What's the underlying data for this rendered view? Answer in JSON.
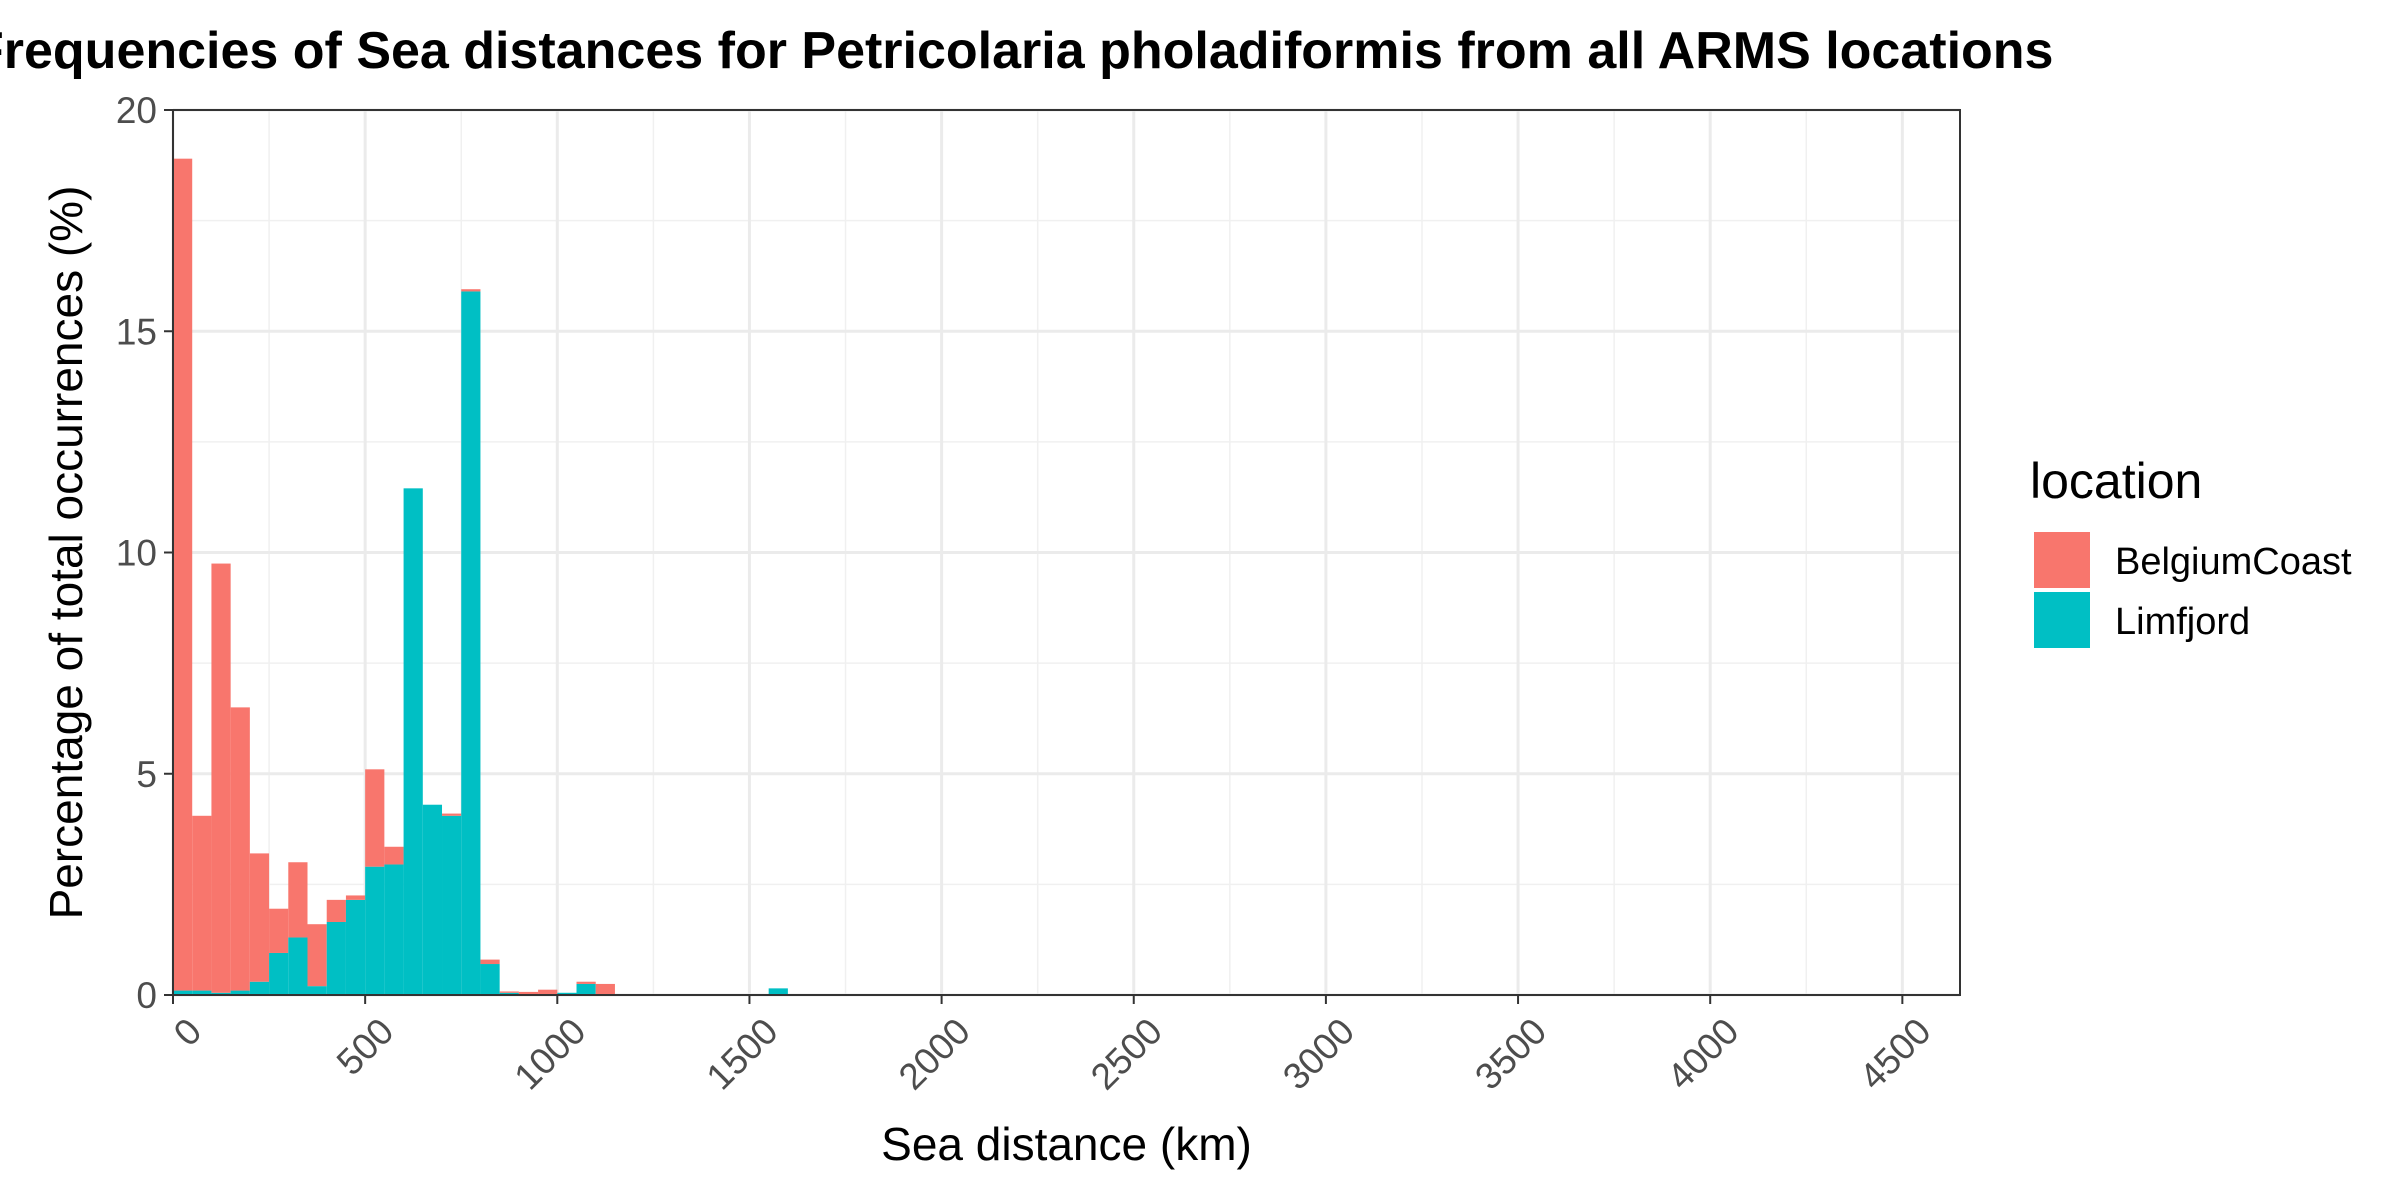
{
  "chart_data": {
    "type": "bar",
    "stacked": true,
    "title": "Frequencies of Sea distances for Petricolaria pholadiformis from all ARMS locations",
    "xlabel": "Sea distance (km)",
    "ylabel": "Percentage of total occurrences (%)",
    "xlim": [
      0,
      4650
    ],
    "ylim": [
      0,
      20
    ],
    "bin_width": 50,
    "x_ticks": [
      0,
      500,
      1000,
      1500,
      2000,
      2500,
      3000,
      3500,
      4000,
      4500
    ],
    "x_tick_labels": [
      "0",
      "500",
      "1000",
      "1500",
      "2000",
      "2500",
      "3000",
      "3500",
      "4000",
      "4500"
    ],
    "y_ticks": [
      0,
      5,
      10,
      15,
      20
    ],
    "y_tick_labels": [
      "0",
      "5",
      "10",
      "15",
      "20"
    ],
    "grid": true,
    "legend": {
      "title": "location",
      "placement": "right"
    },
    "x": [
      25,
      75,
      125,
      175,
      225,
      275,
      325,
      375,
      425,
      475,
      525,
      575,
      625,
      675,
      725,
      775,
      825,
      875,
      925,
      975,
      1025,
      1075,
      1125,
      1575
    ],
    "series": [
      {
        "name": "BelgiumCoast",
        "color": "#F8766D",
        "values": [
          18.8,
          3.95,
          9.7,
          6.4,
          2.9,
          1.0,
          1.7,
          1.4,
          0.5,
          0.1,
          2.2,
          0.4,
          0.0,
          0.0,
          0.05,
          0.05,
          0.1,
          0.03,
          0.05,
          0.1,
          0.0,
          0.05,
          0.25,
          0.0
        ]
      },
      {
        "name": "Limfjord",
        "color": "#00BFC4",
        "values": [
          0.1,
          0.1,
          0.05,
          0.1,
          0.3,
          0.95,
          1.3,
          0.2,
          1.65,
          2.15,
          2.9,
          2.95,
          11.45,
          4.3,
          4.05,
          15.9,
          0.7,
          0.05,
          0.02,
          0.02,
          0.05,
          0.25,
          0.0,
          0.15
        ]
      }
    ]
  }
}
